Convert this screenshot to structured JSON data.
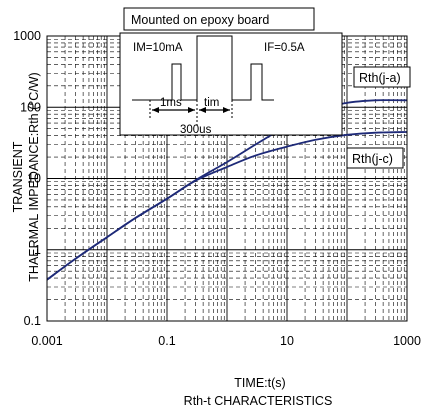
{
  "chart_data": {
    "type": "line",
    "title": "",
    "caption": "Rth-t CHARACTERISTICS",
    "xlabel": "TIME:t(s)",
    "ylabel_lines": [
      "TRANSIENT",
      "THAERMAL IMPEDANCE:Rth (°C/W)"
    ],
    "x_scale": "log",
    "y_scale": "log",
    "xlim": [
      0.001,
      1000
    ],
    "ylim": [
      0.1,
      1000
    ],
    "x_ticks": [
      "0.001",
      "0.1",
      "10",
      "1000"
    ],
    "y_ticks": [
      "0.1",
      "1",
      "10",
      "100",
      "1000"
    ],
    "grid": true,
    "series": [
      {
        "name": "Rth(j-a)",
        "color": "#1e2a78",
        "x": [
          0.001,
          0.003,
          0.01,
          0.03,
          0.1,
          0.3,
          1,
          3,
          10,
          30,
          100,
          300,
          1000
        ],
        "y": [
          0.38,
          0.75,
          1.5,
          2.8,
          5.2,
          9.5,
          17,
          30,
          55,
          90,
          115,
          125,
          125
        ]
      },
      {
        "name": "Rth(j-c)",
        "color": "#1e2a78",
        "x": [
          0.001,
          0.003,
          0.01,
          0.03,
          0.1,
          0.3,
          1,
          3,
          10,
          30,
          100,
          300,
          1000
        ],
        "y": [
          0.38,
          0.75,
          1.5,
          2.8,
          5.2,
          9.3,
          14.5,
          21,
          28,
          35,
          41,
          44,
          45
        ]
      }
    ],
    "inset": {
      "title": "Mounted on epoxy board",
      "im_label": "IM=10mA",
      "if_label": "IF=0.5A",
      "t1_label": "1ms",
      "tim_label": "tim",
      "t300_label": "300us"
    }
  }
}
